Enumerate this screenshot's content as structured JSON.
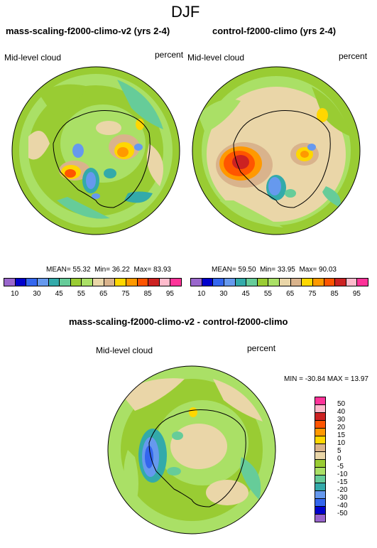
{
  "figure": {
    "title": "DJF"
  },
  "panels": {
    "left": {
      "title": "mass-scaling-f2000-climo-v2 (yrs 2-4)",
      "var_label": "Mid-level cloud",
      "units": "percent",
      "stats": {
        "mean": "55.32",
        "min": "36.22",
        "max": "83.93",
        "mean_label": "MEAN=",
        "min_label": "Min=",
        "max_label": "Max="
      }
    },
    "right": {
      "title": "control-f2000-climo (yrs 2-4)",
      "var_label": "Mid-level cloud",
      "units": "percent",
      "stats": {
        "mean": "59.50",
        "min": "33.95",
        "max": "90.03",
        "mean_label": "MEAN=",
        "min_label": "Min=",
        "max_label": "Max="
      }
    },
    "diff": {
      "title": "mass-scaling-f2000-climo-v2 - control-f2000-climo",
      "var_label": "Mid-level cloud",
      "units": "percent",
      "minmax": "MIN = -30.84 MAX =  13.97"
    }
  },
  "chart_data": [
    {
      "type": "heatmap",
      "projection": "south-polar-stereographic",
      "title": "mass-scaling-f2000-climo-v2 (yrs 2-4)",
      "colorbar": {
        "orientation": "horizontal",
        "levels": [
          10,
          20,
          30,
          40,
          45,
          50,
          55,
          60,
          65,
          70,
          75,
          80,
          85,
          90,
          95
        ],
        "tick_labels": [
          "10",
          "30",
          "45",
          "55",
          "65",
          "75",
          "85",
          "95"
        ],
        "colors": [
          "#9966cc",
          "#0000cc",
          "#3366ee",
          "#6699ee",
          "#33aaaa",
          "#66cc99",
          "#99cc33",
          "#aae066",
          "#ead6a8",
          "#d9b38c",
          "#ffd700",
          "#ff9900",
          "#ff5500",
          "#cc2222",
          "#ffbbcc",
          "#ff3399"
        ]
      },
      "mean": 55.32,
      "min": 36.22,
      "max": 83.93
    },
    {
      "type": "heatmap",
      "projection": "south-polar-stereographic",
      "title": "control-f2000-climo (yrs 2-4)",
      "colorbar": {
        "orientation": "horizontal",
        "levels": [
          10,
          20,
          30,
          40,
          45,
          50,
          55,
          60,
          65,
          70,
          75,
          80,
          85,
          90,
          95
        ],
        "tick_labels": [
          "10",
          "30",
          "45",
          "55",
          "65",
          "75",
          "85",
          "95"
        ],
        "colors": [
          "#9966cc",
          "#0000cc",
          "#3366ee",
          "#6699ee",
          "#33aaaa",
          "#66cc99",
          "#99cc33",
          "#aae066",
          "#ead6a8",
          "#d9b38c",
          "#ffd700",
          "#ff9900",
          "#ff5500",
          "#cc2222",
          "#ffbbcc",
          "#ff3399"
        ]
      },
      "mean": 59.5,
      "min": 33.95,
      "max": 90.03
    },
    {
      "type": "heatmap",
      "projection": "south-polar-stereographic",
      "title": "mass-scaling-f2000-climo-v2 - control-f2000-climo",
      "colorbar": {
        "orientation": "vertical",
        "levels": [
          -50,
          -40,
          -30,
          -20,
          -15,
          -10,
          -5,
          0,
          5,
          10,
          15,
          20,
          30,
          40,
          50
        ],
        "tick_labels": [
          "50",
          "40",
          "30",
          "20",
          "15",
          "10",
          "5",
          "0",
          "-5",
          "-10",
          "-15",
          "-20",
          "-30",
          "-40",
          "-50"
        ],
        "colors": [
          "#ff3399",
          "#ffbbcc",
          "#cc2222",
          "#ff5500",
          "#ff9900",
          "#ffd700",
          "#d9b38c",
          "#ead6a8",
          "#99cc33",
          "#aae066",
          "#66cc99",
          "#33aaaa",
          "#6699ee",
          "#3366ee",
          "#0000cc",
          "#9966cc"
        ]
      },
      "min": -30.84,
      "max": 13.97
    }
  ]
}
